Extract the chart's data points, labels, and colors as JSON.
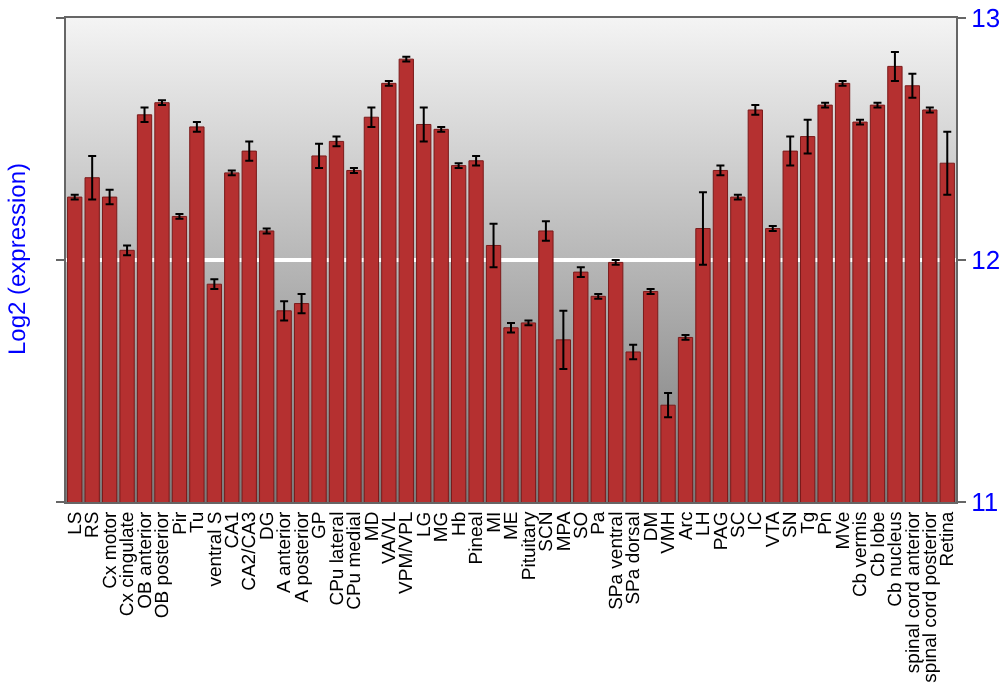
{
  "chart_data": {
    "type": "bar",
    "ylabel": "Log2 (expression)",
    "categories": [
      "LS",
      "RS",
      "Cx motor",
      "Cx cingulate",
      "OB anterior",
      "OB posterior",
      "Pir",
      "Tu",
      "ventral S",
      "CA1",
      "CA2/CA3",
      "DG",
      "A anterior",
      "A posterior",
      "GP",
      "CPu lateral",
      "CPu medial",
      "MD",
      "VA/VL",
      "VPM/VPL",
      "LG",
      "MG",
      "Hb",
      "Pineal",
      "MI",
      "ME",
      "Pituitary",
      "SCN",
      "MPA",
      "SO",
      "Pa",
      "SPa ventral",
      "SPa dorsal",
      "DM",
      "VMH",
      "Arc",
      "LH",
      "PAG",
      "SC",
      "IC",
      "VTA",
      "SN",
      "Tg",
      "Pn",
      "MVe",
      "Cb vermis",
      "Cb lobe",
      "Cb nucleus",
      "spinal cord anterior",
      "spinal cord posterior",
      "Retina"
    ],
    "values": [
      12.26,
      12.34,
      12.26,
      12.04,
      12.6,
      12.65,
      12.18,
      12.55,
      11.9,
      12.36,
      12.45,
      12.12,
      11.79,
      11.82,
      12.43,
      12.49,
      12.37,
      12.59,
      12.73,
      12.83,
      12.56,
      12.54,
      12.39,
      12.41,
      12.06,
      11.72,
      11.74,
      12.12,
      11.67,
      11.95,
      11.85,
      11.99,
      11.62,
      11.87,
      11.4,
      11.68,
      12.13,
      12.37,
      12.26,
      12.62,
      12.13,
      12.45,
      12.51,
      12.64,
      12.73,
      12.57,
      12.64,
      12.8,
      12.72,
      12.62,
      12.4
    ],
    "errors": [
      0.01,
      0.09,
      0.03,
      0.02,
      0.03,
      0.01,
      0.01,
      0.02,
      0.02,
      0.01,
      0.04,
      0.01,
      0.04,
      0.04,
      0.05,
      0.02,
      0.01,
      0.04,
      0.01,
      0.01,
      0.07,
      0.01,
      0.01,
      0.02,
      0.09,
      0.02,
      0.01,
      0.04,
      0.12,
      0.02,
      0.01,
      0.01,
      0.03,
      0.01,
      0.05,
      0.01,
      0.15,
      0.02,
      0.01,
      0.02,
      0.01,
      0.06,
      0.07,
      0.01,
      0.01,
      0.01,
      0.01,
      0.06,
      0.05,
      0.01,
      0.13
    ],
    "color": "#b53030",
    "ylim": [
      11,
      13
    ],
    "yticks": [
      11,
      12,
      13
    ],
    "grid": "y"
  }
}
